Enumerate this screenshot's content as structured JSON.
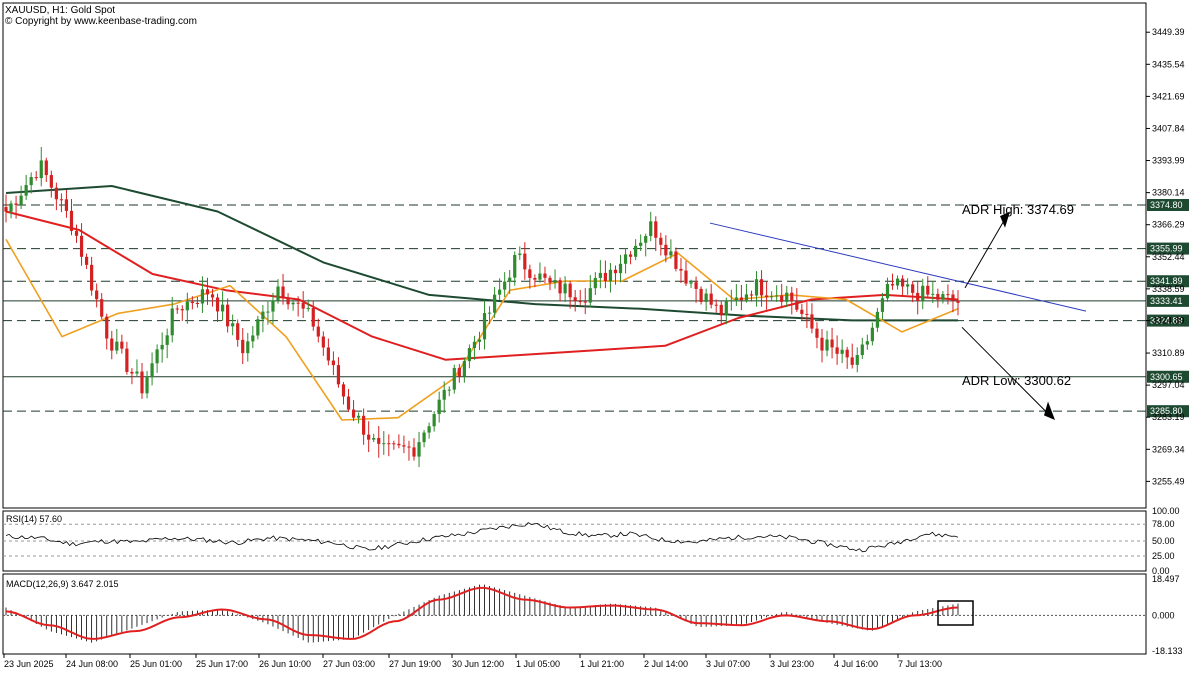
{
  "header": {
    "symbol_line": "XAUUSD, H1:  Gold Spot",
    "copyright": "© Copyright by www.keenbase-trading.com"
  },
  "colors": {
    "bull": "#2e8b2e",
    "bear": "#d42020",
    "ma_fast": "#f0a020",
    "ma_mid": "#e02020",
    "ma_slow": "#1e4a32",
    "trend": "#2c3bbf",
    "level_tag": "#1e4a32",
    "macd_signal": "#e02020",
    "macd_hist": "#000000",
    "rsi": "#000000"
  },
  "chart_data": {
    "type": "candlestick",
    "symbol": "XAUUSD",
    "timeframe": "H1",
    "ylim": [
      3244,
      3462
    ],
    "y_ticks": [
      3449.39,
      3435.54,
      3421.69,
      3407.84,
      3393.99,
      3380.14,
      3366.29,
      3352.44,
      3338.59,
      3324.89,
      3310.89,
      3297.04,
      3283.19,
      3269.34,
      3255.49
    ],
    "x_labels": [
      "23 Jun 2025",
      "24 Jun 08:00",
      "25 Jun 01:00",
      "25 Jun 17:00",
      "26 Jun 10:00",
      "27 Jun 03:00",
      "27 Jun 19:00",
      "30 Jun 12:00",
      "1 Jul 05:00",
      "1 Jul 21:00",
      "2 Jul 14:00",
      "3 Jul 07:00",
      "3 Jul 23:00",
      "4 Jul 16:00",
      "7 Jul 13:00"
    ],
    "levels": [
      {
        "value": 3374.8,
        "label": "3374.80",
        "style": "dashed"
      },
      {
        "value": 3355.99,
        "label": "3355.99",
        "style": "dashed"
      },
      {
        "value": 3341.89,
        "label": "3341.89",
        "style": "dashed"
      },
      {
        "value": 3333.41,
        "label": "3333.41",
        "style": "solid"
      },
      {
        "value": 3324.89,
        "label": "3324.89",
        "style": "dashed"
      },
      {
        "value": 3300.65,
        "label": "3300.65",
        "style": "solid"
      },
      {
        "value": 3285.8,
        "label": "3285.80",
        "style": "dashed"
      }
    ],
    "annotations": [
      {
        "label": "ADR High: 3374.69"
      },
      {
        "label": "ADR Low: 3300.62"
      }
    ],
    "key_closes": [
      3372,
      3392,
      3365,
      3318,
      3296,
      3330,
      3338,
      3312,
      3340,
      3325,
      3290,
      3268,
      3270,
      3296,
      3322,
      3352,
      3340,
      3336,
      3350,
      3366,
      3344,
      3328,
      3340,
      3336,
      3315,
      3305,
      3340,
      3336,
      3333
    ],
    "ma_fast": [
      3360,
      3318,
      3328,
      3332,
      3340,
      3318,
      3282,
      3283,
      3300,
      3338,
      3342,
      3342,
      3354,
      3334,
      3336,
      3334,
      3320,
      3330
    ],
    "ma_mid": [
      3372,
      3364,
      3345,
      3338,
      3334,
      3318,
      3308,
      3310,
      3312,
      3314,
      3326,
      3334,
      3336,
      3334
    ],
    "ma_slow": [
      3380,
      3383,
      3372,
      3350,
      3336,
      3332,
      3330,
      3327,
      3325,
      3325
    ],
    "rsi": {
      "label": "RSI(14) 57.60",
      "ticks": [
        100,
        78,
        50,
        25,
        0
      ],
      "tick_labels": [
        "100.00",
        "78.00",
        "50.00",
        "25.00",
        "0.00"
      ],
      "ylim": [
        0,
        100
      ],
      "values": [
        58,
        55,
        45,
        50,
        48,
        55,
        52,
        47,
        55,
        52,
        47,
        35,
        45,
        55,
        62,
        72,
        80,
        65,
        58,
        62,
        52,
        48,
        55,
        58,
        55,
        45,
        35,
        45,
        62,
        58
      ]
    },
    "macd": {
      "label": "MACD(12,26,9) 3.647 2.015",
      "ticks": [
        18.497,
        0,
        -18.133
      ],
      "tick_labels": [
        "18.497",
        "0.000",
        "-18.133"
      ],
      "ylim": [
        -18.133,
        18.497
      ],
      "hist": [
        4,
        -8,
        -14,
        -6,
        2,
        3,
        -4,
        -14,
        -12,
        0,
        10,
        16,
        10,
        4,
        6,
        4,
        -6,
        -5,
        2,
        -4,
        -8,
        2,
        6
      ],
      "signal": [
        2,
        -5,
        -12,
        -8,
        -1,
        3,
        -2,
        -10,
        -12,
        -3,
        8,
        14,
        8,
        4,
        5,
        3,
        -4,
        -5,
        0,
        -3,
        -7,
        0,
        4
      ]
    }
  }
}
